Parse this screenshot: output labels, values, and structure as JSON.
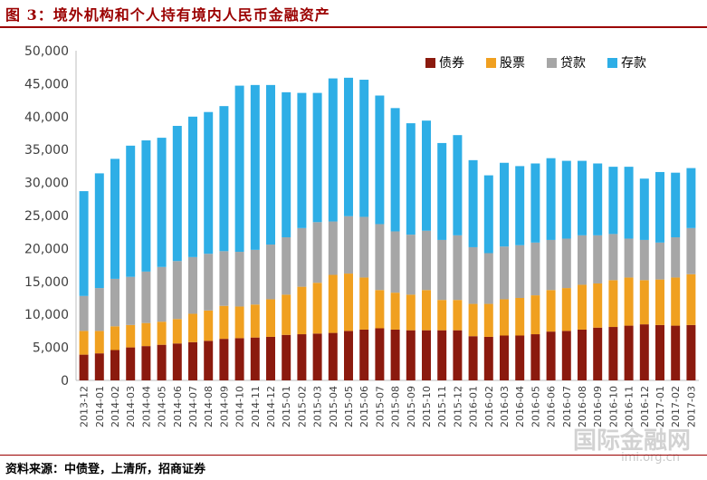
{
  "title": "图 3：境外机构和个人持有境内人民币金融资产",
  "source": "资料来源：中债登，上清所，招商证券",
  "watermark": {
    "text": "国际金融网",
    "url": "imi.org.cn"
  },
  "colors": {
    "title": "#9b0000",
    "bond": "#8b1a0e",
    "stock": "#f0a020",
    "loan": "#a6a6a6",
    "deposit": "#2eaee6"
  },
  "chart_data": {
    "type": "bar",
    "stacked": true,
    "grid": false,
    "legend_position": "top-right",
    "ylim": [
      0,
      50000
    ],
    "yticks": [
      "0",
      "5,000",
      "10,000",
      "15,000",
      "20,000",
      "25,000",
      "30,000",
      "35,000",
      "40,000",
      "45,000",
      "50,000"
    ],
    "categories": [
      "2013-12",
      "2014-01",
      "2014-02",
      "2014-03",
      "2014-04",
      "2014-05",
      "2014-06",
      "2014-07",
      "2014-08",
      "2014-09",
      "2014-10",
      "2014-11",
      "2014-12",
      "2015-01",
      "2015-02",
      "2015-03",
      "2015-04",
      "2015-05",
      "2015-06",
      "2015-07",
      "2015-08",
      "2015-09",
      "2015-10",
      "2015-11",
      "2015-12",
      "2016-01",
      "2016-02",
      "2016-03",
      "2016-04",
      "2016-05",
      "2016-06",
      "2016-07",
      "2016-08",
      "2016-09",
      "2016-10",
      "2016-11",
      "2016-12",
      "2017-01",
      "2017-02",
      "2017-03"
    ],
    "series": [
      {
        "name": "债券",
        "values": [
          3900,
          4100,
          4600,
          5000,
          5200,
          5400,
          5600,
          5800,
          6000,
          6300,
          6400,
          6500,
          6600,
          6900,
          7000,
          7100,
          7200,
          7500,
          7700,
          7900,
          7700,
          7600,
          7600,
          7600,
          7600,
          6700,
          6600,
          6800,
          6800,
          7000,
          7400,
          7500,
          7700,
          8000,
          8100,
          8300,
          8500,
          8400,
          8300,
          8400
        ]
      },
      {
        "name": "股票",
        "values": [
          3600,
          3400,
          3600,
          3400,
          3500,
          3500,
          3700,
          4300,
          4600,
          5000,
          4800,
          5000,
          5700,
          6100,
          7200,
          7700,
          8800,
          8700,
          7900,
          5800,
          5600,
          5400,
          6100,
          4600,
          4600,
          4900,
          5000,
          5500,
          5700,
          5900,
          6300,
          6500,
          6800,
          6700,
          7100,
          7300,
          6700,
          6900,
          7300,
          7700
        ]
      },
      {
        "name": "贷款",
        "values": [
          5300,
          6500,
          7200,
          7300,
          7800,
          8300,
          8800,
          8600,
          8600,
          8300,
          8300,
          8300,
          8300,
          8700,
          8900,
          9200,
          8100,
          8700,
          9200,
          10000,
          9300,
          9100,
          9000,
          9100,
          9800,
          8600,
          7700,
          8000,
          8000,
          8000,
          7600,
          7500,
          7500,
          7300,
          7000,
          5900,
          6100,
          5600,
          6100,
          7000
        ]
      },
      {
        "name": "存款",
        "values": [
          15900,
          17400,
          18200,
          19900,
          19900,
          19600,
          20500,
          21300,
          21500,
          22000,
          25200,
          25000,
          24200,
          22000,
          20500,
          19600,
          21700,
          21000,
          20800,
          19500,
          18700,
          16900,
          16700,
          14700,
          15200,
          13200,
          11800,
          12700,
          12000,
          12000,
          12400,
          11800,
          11300,
          10900,
          10200,
          10900,
          9300,
          10700,
          9800,
          9100
        ]
      }
    ]
  }
}
